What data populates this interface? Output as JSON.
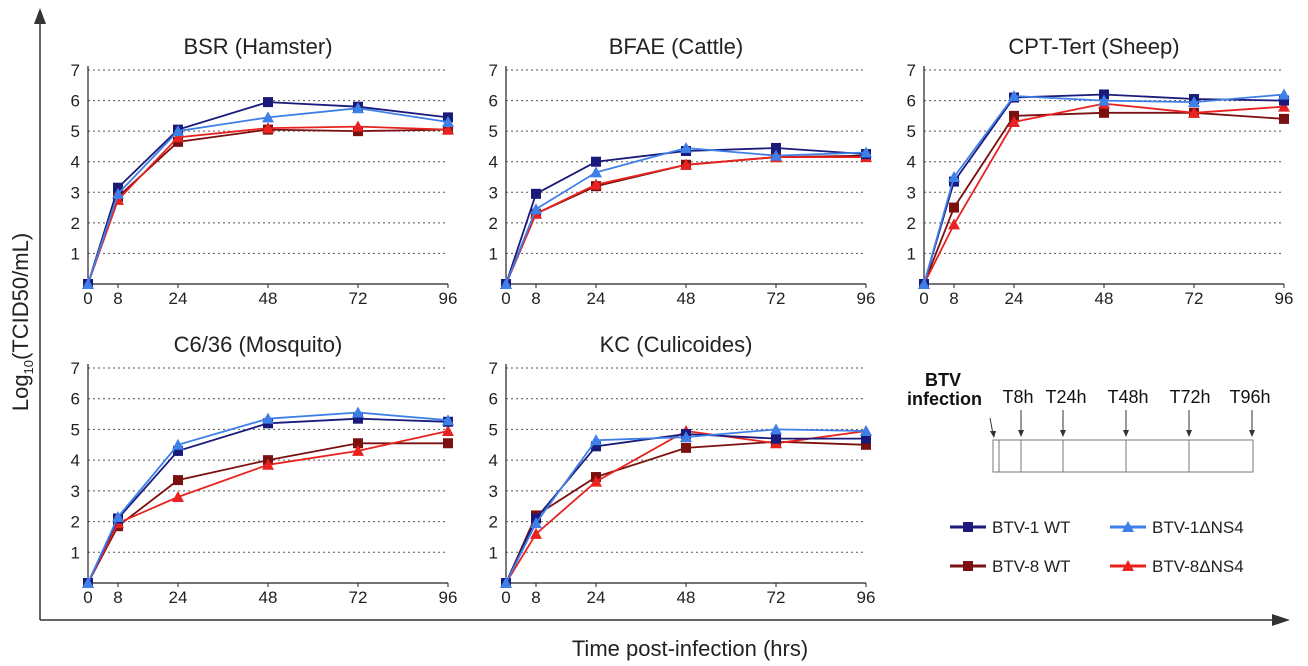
{
  "figure": {
    "ylabel_main": "Log",
    "ylabel_sub": "10",
    "ylabel_rest": "(TCID50/mL)",
    "xlabel": "Time post-infection (hrs)"
  },
  "colors": {
    "btv1_wt": "#1a1a7a",
    "btv1_dns4": "#3f7fe8",
    "btv8_wt": "#7a1010",
    "btv8_dns4": "#e8231f"
  },
  "legend": [
    {
      "key": "btv1_wt",
      "label": "BTV-1 WT",
      "marker": "square"
    },
    {
      "key": "btv1_dns4",
      "label": "BTV-1ΔNS4",
      "marker": "triangle"
    },
    {
      "key": "btv8_wt",
      "label": "BTV-8 WT",
      "marker": "square"
    },
    {
      "key": "btv8_dns4",
      "label": "BTV-8ΔNS4",
      "marker": "triangle"
    }
  ],
  "timeline": {
    "start_label_1": "BTV",
    "start_label_2": "infection",
    "points": [
      "T8h",
      "T24h",
      "T48h",
      "T72h",
      "T96h"
    ]
  },
  "chart_data": [
    {
      "type": "line",
      "title": "BSR (Hamster)",
      "x": [
        0,
        8,
        24,
        48,
        72,
        96
      ],
      "ylim": [
        0,
        7
      ],
      "yticks": [
        1,
        2,
        3,
        4,
        5,
        6,
        7
      ],
      "series": [
        {
          "key": "btv1_wt",
          "values": [
            0,
            3.15,
            5.05,
            5.95,
            5.8,
            5.45
          ]
        },
        {
          "key": "btv1_dns4",
          "values": [
            0,
            2.95,
            5.0,
            5.45,
            5.75,
            5.3
          ]
        },
        {
          "key": "btv8_wt",
          "values": [
            0,
            2.85,
            4.65,
            5.05,
            5.0,
            5.05
          ]
        },
        {
          "key": "btv8_dns4",
          "values": [
            0,
            2.75,
            4.8,
            5.1,
            5.15,
            5.05
          ]
        }
      ]
    },
    {
      "type": "line",
      "title": "BFAE (Cattle)",
      "x": [
        0,
        8,
        24,
        48,
        72,
        96
      ],
      "ylim": [
        0,
        7
      ],
      "yticks": [
        1,
        2,
        3,
        4,
        5,
        6,
        7
      ],
      "series": [
        {
          "key": "btv1_wt",
          "values": [
            0,
            2.95,
            4.0,
            4.35,
            4.45,
            4.25
          ]
        },
        {
          "key": "btv1_dns4",
          "values": [
            0,
            2.45,
            3.65,
            4.45,
            4.2,
            4.3
          ]
        },
        {
          "key": "btv8_wt",
          "values": [
            0,
            2.3,
            3.2,
            3.9,
            4.15,
            4.2
          ]
        },
        {
          "key": "btv8_dns4",
          "values": [
            0,
            2.3,
            3.25,
            3.9,
            4.15,
            4.15
          ]
        }
      ]
    },
    {
      "type": "line",
      "title": "CPT-Tert (Sheep)",
      "x": [
        0,
        8,
        24,
        48,
        72,
        96
      ],
      "ylim": [
        0,
        7
      ],
      "yticks": [
        1,
        2,
        3,
        4,
        5,
        6,
        7
      ],
      "series": [
        {
          "key": "btv1_wt",
          "values": [
            0,
            3.35,
            6.1,
            6.2,
            6.05,
            6.0
          ]
        },
        {
          "key": "btv1_dns4",
          "values": [
            0,
            3.5,
            6.15,
            6.0,
            5.95,
            6.2
          ]
        },
        {
          "key": "btv8_wt",
          "values": [
            0,
            2.5,
            5.5,
            5.6,
            5.6,
            5.4
          ]
        },
        {
          "key": "btv8_dns4",
          "values": [
            0,
            1.95,
            5.3,
            5.9,
            5.6,
            5.8
          ]
        }
      ]
    },
    {
      "type": "line",
      "title": "C6/36 (Mosquito)",
      "x": [
        0,
        8,
        24,
        48,
        72,
        96
      ],
      "ylim": [
        0,
        7
      ],
      "yticks": [
        1,
        2,
        3,
        4,
        5,
        6,
        7
      ],
      "series": [
        {
          "key": "btv1_wt",
          "values": [
            0,
            2.1,
            4.3,
            5.2,
            5.35,
            5.25
          ]
        },
        {
          "key": "btv1_dns4",
          "values": [
            0,
            2.15,
            4.5,
            5.35,
            5.55,
            5.3
          ]
        },
        {
          "key": "btv8_wt",
          "values": [
            0,
            1.85,
            3.35,
            4.0,
            4.55,
            4.55
          ]
        },
        {
          "key": "btv8_dns4",
          "values": [
            0,
            1.95,
            2.8,
            3.85,
            4.3,
            4.95
          ]
        }
      ]
    },
    {
      "type": "line",
      "title": "KC (Culicoides)",
      "x": [
        0,
        8,
        24,
        48,
        72,
        96
      ],
      "ylim": [
        0,
        7
      ],
      "yticks": [
        1,
        2,
        3,
        4,
        5,
        6,
        7
      ],
      "series": [
        {
          "key": "btv1_wt",
          "values": [
            0,
            2.1,
            4.45,
            4.85,
            4.7,
            4.7
          ]
        },
        {
          "key": "btv1_dns4",
          "values": [
            0,
            1.95,
            4.65,
            4.75,
            5.0,
            4.95
          ]
        },
        {
          "key": "btv8_wt",
          "values": [
            0,
            2.2,
            3.45,
            4.4,
            4.6,
            4.5
          ]
        },
        {
          "key": "btv8_dns4",
          "values": [
            0,
            1.6,
            3.3,
            4.95,
            4.55,
            4.95
          ]
        }
      ]
    }
  ]
}
